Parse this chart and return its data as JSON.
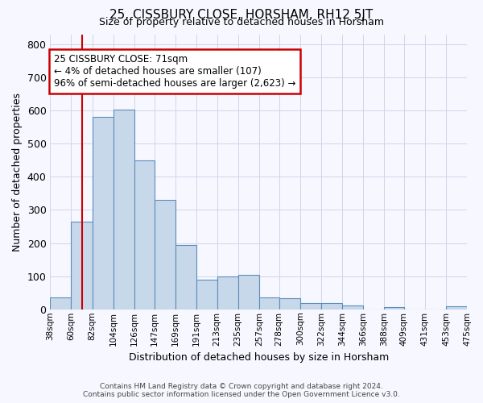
{
  "title": "25, CISSBURY CLOSE, HORSHAM, RH12 5JT",
  "subtitle": "Size of property relative to detached houses in Horsham",
  "xlabel": "Distribution of detached houses by size in Horsham",
  "ylabel": "Number of detached properties",
  "footer_line1": "Contains HM Land Registry data © Crown copyright and database right 2024.",
  "footer_line2": "Contains public sector information licensed under the Open Government Licence v3.0.",
  "annotation_line1": "25 CISSBURY CLOSE: 71sqm",
  "annotation_line2": "← 4% of detached houses are smaller (107)",
  "annotation_line3": "96% of semi-detached houses are larger (2,623) →",
  "property_size": 71,
  "bar_color": "#c8d8eb",
  "bar_edge_color": "#5b8db8",
  "grid_color": "#d0d4e8",
  "background_color": "#f7f7ff",
  "vline_color": "#cc0000",
  "annotation_box_edge_color": "#cc0000",
  "bins": [
    38,
    60,
    82,
    104,
    126,
    147,
    169,
    191,
    213,
    235,
    257,
    278,
    300,
    322,
    344,
    366,
    388,
    409,
    431,
    453,
    475
  ],
  "heights": [
    37,
    265,
    580,
    603,
    450,
    330,
    195,
    90,
    100,
    105,
    37,
    33,
    18,
    18,
    12,
    0,
    7,
    0,
    0,
    8
  ],
  "tick_labels": [
    "38sqm",
    "60sqm",
    "82sqm",
    "104sqm",
    "126sqm",
    "147sqm",
    "169sqm",
    "191sqm",
    "213sqm",
    "235sqm",
    "257sqm",
    "278sqm",
    "300sqm",
    "322sqm",
    "344sqm",
    "366sqm",
    "388sqm",
    "409sqm",
    "431sqm",
    "453sqm",
    "475sqm"
  ],
  "ylim": [
    0,
    830
  ],
  "yticks": [
    0,
    100,
    200,
    300,
    400,
    500,
    600,
    700,
    800
  ]
}
